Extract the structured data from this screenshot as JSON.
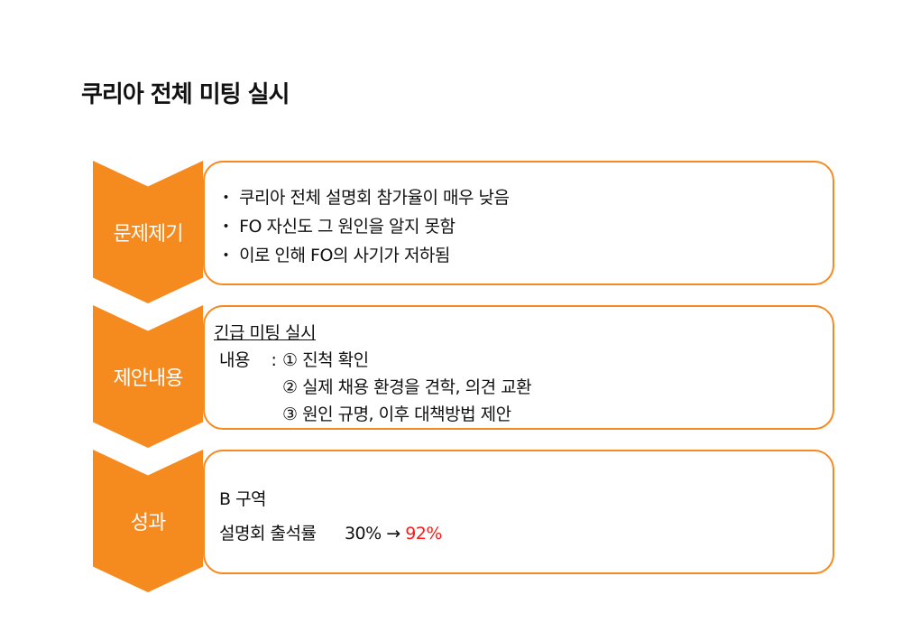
{
  "title": "쿠리아 전체 미팅 실시",
  "sections": [
    {
      "label": "문제제기",
      "bullets": [
        "쿠리아 전체 설명회 참가율이 매우 낮음",
        "FO 자신도 그 원인을 알지 못함",
        "이로 인해 FO의 사기가 저하됨"
      ],
      "bullet_mark": "・"
    },
    {
      "label": "제안내용",
      "heading": "긴급 미팅 실시",
      "content_label": "내용",
      "colon": ":",
      "items": [
        {
          "num": "①",
          "text": "진척 확인"
        },
        {
          "num": "②",
          "text": "실제 채용 환경을 견학, 의견 교환"
        },
        {
          "num": "③",
          "text": "원인 규명, 이후 대책방법 제안"
        }
      ]
    },
    {
      "label": "성과",
      "area": "B 구역",
      "metric_label": "설명회 출석률",
      "before": "30%",
      "arrow": "→",
      "after": "92%"
    }
  ],
  "colors": {
    "accent": "#f58a1f",
    "highlight": "#ff1a1a"
  }
}
